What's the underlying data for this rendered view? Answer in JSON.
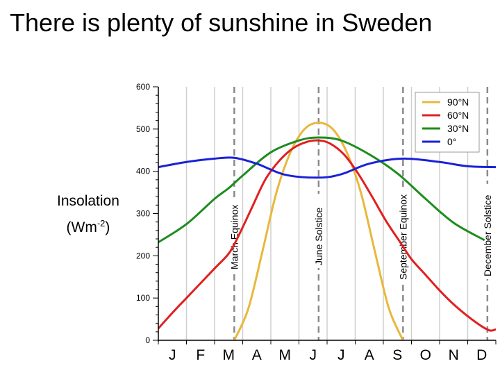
{
  "slide": {
    "title": "There is plenty of sunshine in Sweden"
  },
  "y_label": {
    "main": "Insolation",
    "unit_open": "(Wm",
    "unit_exp": "-2",
    "unit_close": ")"
  },
  "chart_data": {
    "type": "line",
    "title": "There is plenty of sunshine in Sweden",
    "xlabel": "",
    "ylabel": "Insolation (Wm-2)",
    "ylim": [
      0,
      600
    ],
    "xlim": [
      0,
      12
    ],
    "grid": true,
    "y_ticks": [
      "0",
      "100",
      "200",
      "300",
      "400",
      "500",
      "600"
    ],
    "month_labels": [
      "J",
      "F",
      "M",
      "A",
      "M",
      "J",
      "J",
      "A",
      "S",
      "O",
      "N",
      "D"
    ],
    "events": [
      {
        "label": "March Equinox",
        "month": 2.7
      },
      {
        "label": "June Solstice",
        "month": 5.7
      },
      {
        "label": "September Equinox",
        "month": 8.7
      },
      {
        "label": "December Solstice",
        "month": 11.7
      }
    ],
    "legend": {
      "position": "top-right"
    },
    "series": [
      {
        "name": "90°N",
        "color": "#e8b83c",
        "x": [
          2.7,
          3.2,
          3.7,
          4.2,
          4.7,
          5.2,
          5.7,
          6.2,
          6.7,
          7.2,
          7.7,
          8.2,
          8.7
        ],
        "values": [
          0,
          75,
          210,
          350,
          445,
          500,
          515,
          500,
          445,
          350,
          210,
          75,
          0
        ]
      },
      {
        "name": "60°N",
        "color": "#e02020",
        "x": [
          0,
          0.5,
          1,
          1.5,
          2,
          2.5,
          2.8,
          3.3,
          3.8,
          4.3,
          4.8,
          5.3,
          5.7,
          6.1,
          6.6,
          7.1,
          7.6,
          8.1,
          8.6,
          9,
          9.5,
          10,
          10.5,
          11,
          11.5,
          11.8,
          12
        ],
        "values": [
          28,
          65,
          100,
          135,
          170,
          205,
          240,
          310,
          380,
          425,
          455,
          470,
          473,
          466,
          440,
          395,
          340,
          282,
          232,
          192,
          155,
          118,
          85,
          57,
          33,
          23,
          26
        ]
      },
      {
        "name": "30°N",
        "color": "#1e8c1e",
        "x": [
          0,
          1,
          2,
          2.5,
          3,
          4,
          5,
          5.7,
          6.5,
          7.5,
          8.5,
          9.5,
          10.5,
          11.6
        ],
        "values": [
          232,
          275,
          335,
          360,
          390,
          445,
          473,
          480,
          473,
          440,
          395,
          335,
          278,
          237
        ]
      },
      {
        "name": "0°",
        "color": "#1a22d6",
        "x": [
          0,
          1,
          2,
          2.7,
          3.5,
          4.5,
          5.7,
          6.5,
          7.5,
          8.7,
          10,
          11,
          12
        ],
        "values": [
          410,
          422,
          430,
          432,
          418,
          392,
          385,
          393,
          418,
          430,
          422,
          412,
          410
        ]
      }
    ]
  }
}
